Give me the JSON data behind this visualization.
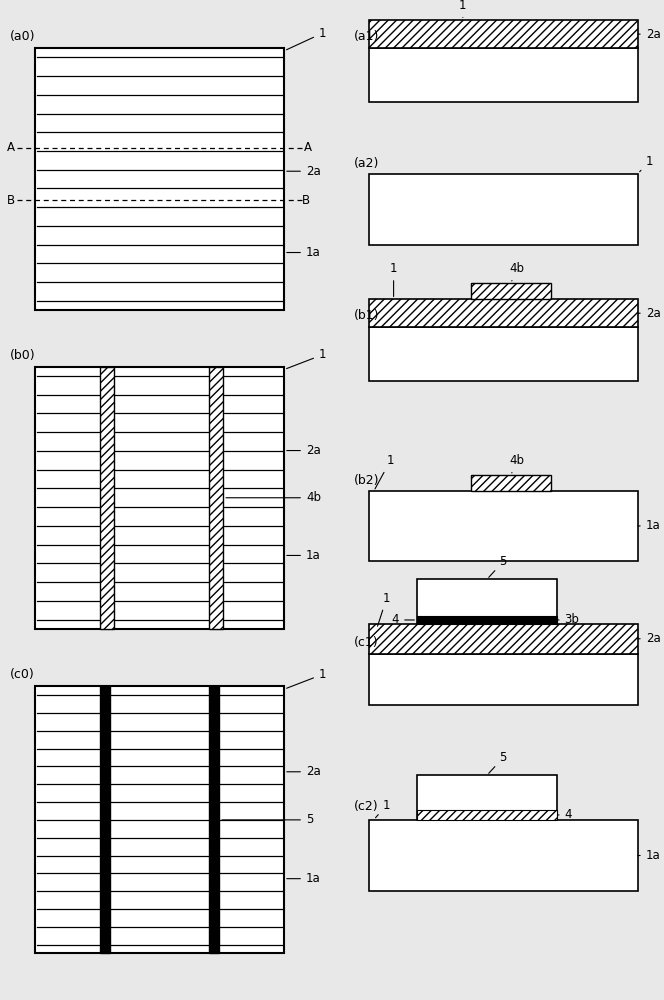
{
  "bg_color": "#e8e8e8",
  "panels": {
    "a0": {
      "label": "(a0)",
      "col": 0,
      "row": 0
    },
    "b0": {
      "label": "(b0)",
      "col": 0,
      "row": 1
    },
    "c0": {
      "label": "(c0)",
      "col": 0,
      "row": 2
    },
    "a1": {
      "label": "(a1)",
      "col": 1,
      "row": 0,
      "sub": 0
    },
    "a2": {
      "label": "(a2)",
      "col": 1,
      "row": 0,
      "sub": 1
    },
    "b1": {
      "label": "(b1)",
      "col": 1,
      "row": 1,
      "sub": 0
    },
    "b2": {
      "label": "(b2)",
      "col": 1,
      "row": 1,
      "sub": 1
    },
    "c1": {
      "label": "(c1)",
      "col": 1,
      "row": 2,
      "sub": 0
    },
    "c2": {
      "label": "(c2)",
      "col": 1,
      "row": 2,
      "sub": 1
    }
  }
}
